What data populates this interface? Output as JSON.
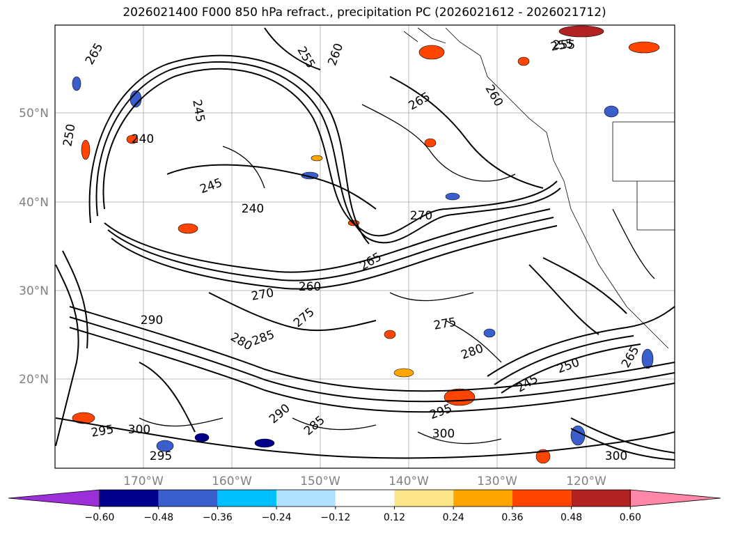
{
  "title": "2026021400 F000 850 hPa refract., precipitation PC (2026021612 - 2026021712)",
  "lat_labels": [
    "50°N",
    "40°N",
    "30°N",
    "20°N"
  ],
  "lon_labels": [
    "170°W",
    "160°W",
    "150°W",
    "140°W",
    "130°W",
    "120°W"
  ],
  "contour_labels": [
    "265",
    "250",
    "255",
    "260",
    "255",
    "245",
    "265",
    "260",
    "240",
    "245",
    "240",
    "270",
    "265",
    "275",
    "270",
    "260",
    "290",
    "285",
    "280",
    "275",
    "280",
    "250",
    "245",
    "265",
    "300",
    "295",
    "290",
    "285",
    "295",
    "300",
    "300",
    "295",
    "255"
  ],
  "colorbar": {
    "ticks": [
      "−0.60",
      "−0.48",
      "−0.36",
      "−0.24",
      "−0.12",
      "0.12",
      "0.24",
      "0.36",
      "0.48",
      "0.60"
    ],
    "colors": [
      "#9b30d9",
      "#00008b",
      "#3a5fcd",
      "#00bfff",
      "#b0e2ff",
      "#ffffff",
      "#fde68a",
      "#ffa500",
      "#ff4500",
      "#b22222",
      "#ff88a8"
    ]
  },
  "colors": {
    "contour": "#000000",
    "grid": "#808080",
    "border": "#000000"
  }
}
